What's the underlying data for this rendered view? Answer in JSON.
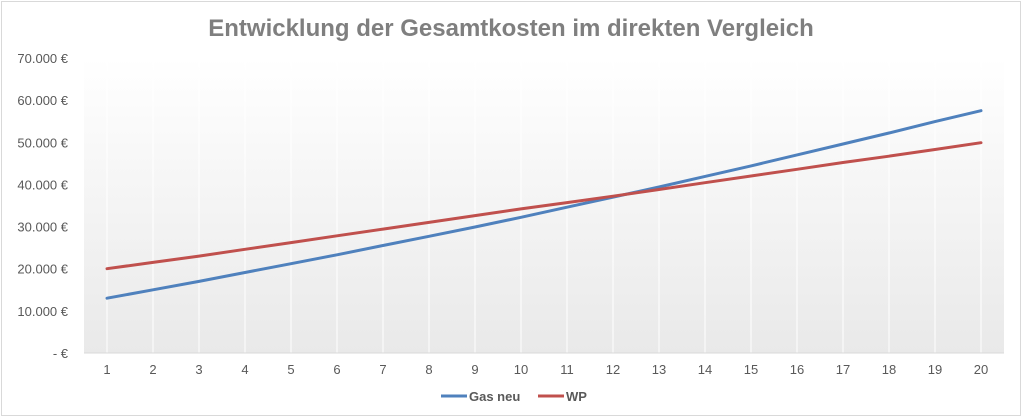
{
  "chart_data": {
    "type": "line",
    "title": "Entwicklung der Gesamtkosten im direkten Vergleich",
    "xlabel": "",
    "ylabel": "",
    "categories": [
      "1",
      "2",
      "3",
      "4",
      "5",
      "6",
      "7",
      "8",
      "9",
      "10",
      "11",
      "12",
      "13",
      "14",
      "15",
      "16",
      "17",
      "18",
      "19",
      "20"
    ],
    "ylim": [
      0,
      70000
    ],
    "yticks": [
      0,
      10000,
      20000,
      30000,
      40000,
      50000,
      60000,
      70000
    ],
    "ytick_labels": [
      "-  €",
      "10.000 €",
      "20.000 €",
      "30.000 €",
      "40.000 €",
      "50.000 €",
      "60.000 €",
      "70.000 €"
    ],
    "grid": "vertical",
    "legend_position": "bottom",
    "series": [
      {
        "name": "Gas neu",
        "color": "#4f81bd",
        "values": [
          13000,
          15000,
          17000,
          19100,
          21200,
          23300,
          25500,
          27700,
          29900,
          32200,
          34600,
          37000,
          39400,
          41900,
          44400,
          47000,
          49600,
          52200,
          54900,
          57500
        ]
      },
      {
        "name": "WP",
        "color": "#c0504d",
        "values": [
          20000,
          21500,
          23000,
          24600,
          26200,
          27800,
          29400,
          31000,
          32600,
          34200,
          35700,
          37200,
          38800,
          40400,
          42000,
          43600,
          45200,
          46700,
          48300,
          49900
        ]
      }
    ]
  }
}
